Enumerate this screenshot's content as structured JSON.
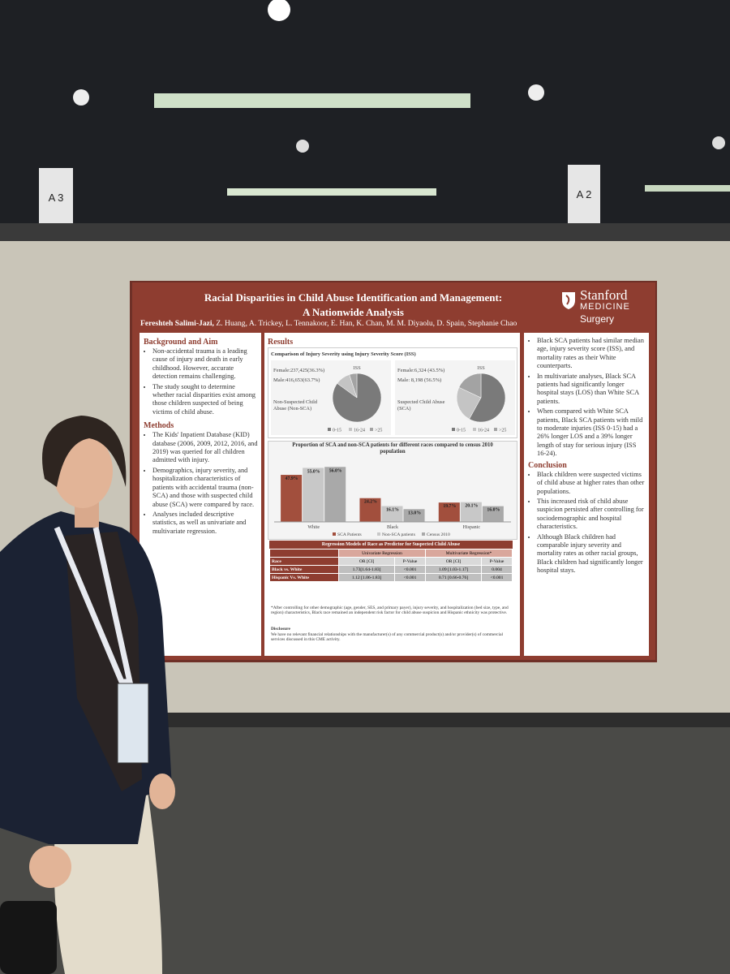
{
  "signs": [
    "A 3",
    "A 2"
  ],
  "poster": {
    "title": "Racial Disparities in Child Abuse Identification and Management:",
    "subtitle": "A Nationwide Analysis",
    "logo": {
      "name": "Stanford",
      "sub": "MEDICINE",
      "dept": "Surgery"
    },
    "authors_lead": "Fereshteh Salimi-Jazi,",
    "authors": "Z. Huang, A. Trickey, L. Tennakoor, E. Han, K. Chan, M. M. Diyaolu, D. Spain, Stephanie Chao",
    "background": {
      "heading": "Background and Aim",
      "bullets": [
        "Non-accidental trauma is a leading cause of injury and death in early childhood. However, accurate detection remains challenging.",
        "The study sought to determine whether racial disparities exist among those children suspected of being victims of child abuse."
      ]
    },
    "methods": {
      "heading": "Methods",
      "bullets": [
        "The Kids' Inpatient Database (KID) database (2006, 2009, 2012, 2016, and 2019) was queried for all children admitted with injury.",
        "Demographics, injury severity, and hospitalization characteristics of patients with accidental trauma (non-SCA) and those with suspected child abuse (SCA) were compared by race.",
        "Analyses included descriptive statistics, as well as univariate and multivariate regression."
      ]
    },
    "results": {
      "heading": "Results",
      "iss": {
        "title": "Comparison of Injury Severity using Injury Severity Score (ISS)",
        "legend": [
          "0-15",
          "16-24",
          ">25"
        ],
        "colors": [
          "#7a7a7a",
          "#c4c4c4",
          "#a3a3a3"
        ],
        "panels": [
          {
            "female": "Female:237,425(36.3%)",
            "male": "Male:416,653(63.7%)",
            "label": "ISS",
            "group": "Non-Suspected Child Abuse (Non-SCA)",
            "values": [
              85,
              10,
              5
            ]
          },
          {
            "female": "Female:6,324 (43.5%)",
            "male": "Male: 8,198 (56.5%)",
            "label": "ISS",
            "group": "Suspected Child Abuse (SCA)",
            "values": [
              58,
              24,
              18
            ]
          }
        ]
      },
      "bar_chart": {
        "type": "bar",
        "title": "Proportion of SCA and non-SCA patients for different races compared to census 2010  population",
        "categories": [
          "White",
          "Black",
          "Hispanic"
        ],
        "ylim": [
          0,
          62
        ],
        "series": [
          {
            "name": "SCA Patients",
            "color": "#a24f3d",
            "values": [
              47.9,
              24.2,
              19.7
            ],
            "value_labels": [
              "47.9%",
              "24.2%",
              "19.7%"
            ]
          },
          {
            "name": "Non-SCA patients",
            "color": "#c8c8c8",
            "values": [
              55.0,
              16.1,
              20.1
            ],
            "value_labels": [
              "55.0%",
              "16.1%",
              "20.1%"
            ]
          },
          {
            "name": "Census 2010",
            "color": "#a9a9a9",
            "values": [
              56.0,
              13.0,
              16.0
            ],
            "value_labels": [
              "56.0%",
              "13.0%",
              "16.0%"
            ]
          }
        ]
      },
      "table": {
        "title": "Regression Models of Race as Predictor for Suspected Child Abuse",
        "groups": [
          "Univariate Regression",
          "Multivariate Regression*"
        ],
        "columns": [
          "Race",
          "OR [CI]",
          "P-Value",
          "OR [CI]",
          "P-Value"
        ],
        "rows": [
          [
            "Black vs. White",
            "1.73[1.64-1.83]",
            "<0.001",
            "1.09 [1.03-1.17]",
            "0.004"
          ],
          [
            "Hispanic Vs. White",
            "1.12 [1.06-1.83]",
            "<0.001",
            "0.71 [0.66-0.76]",
            "<0.001"
          ]
        ]
      },
      "footnote": "*After controlling for other demographic (age, gender, SES, and primary payer), injury severity, and hospitalization (bed size, type, and region) characteristics, Black race remained an independent risk factor for child abuse suspicion and Hispanic ethnicity was protective.",
      "disclosure_heading": "Disclosure",
      "disclosure": "We have no relevant financial relationships with the manufacturer(s) of any commercial product(s) and/or provider(s) of commercial services discussed in this CME activity."
    },
    "findings": {
      "bullets": [
        "Black SCA patients had similar median age, injury severity score (ISS), and mortality rates as their White counterparts.",
        "In multivariate analyses, Black SCA patients had significantly longer hospital stays (LOS) than White SCA patients.",
        "When compared with White SCA patients, Black SCA patients with mild to moderate injuries (ISS 0-15) had a 26% longer LOS and a 39% longer length of stay for serious injury (ISS 16-24)."
      ]
    },
    "conclusion": {
      "heading": "Conclusion",
      "bullets": [
        "Black children were suspected victims of child abuse at higher rates than other populations.",
        "This increased risk of child abuse suspicion persisted after controlling for sociodemographic and hospital characteristics.",
        "Although Black children had comparable injury severity and mortality rates as other racial groups, Black children had significantly longer hospital stays."
      ]
    }
  }
}
